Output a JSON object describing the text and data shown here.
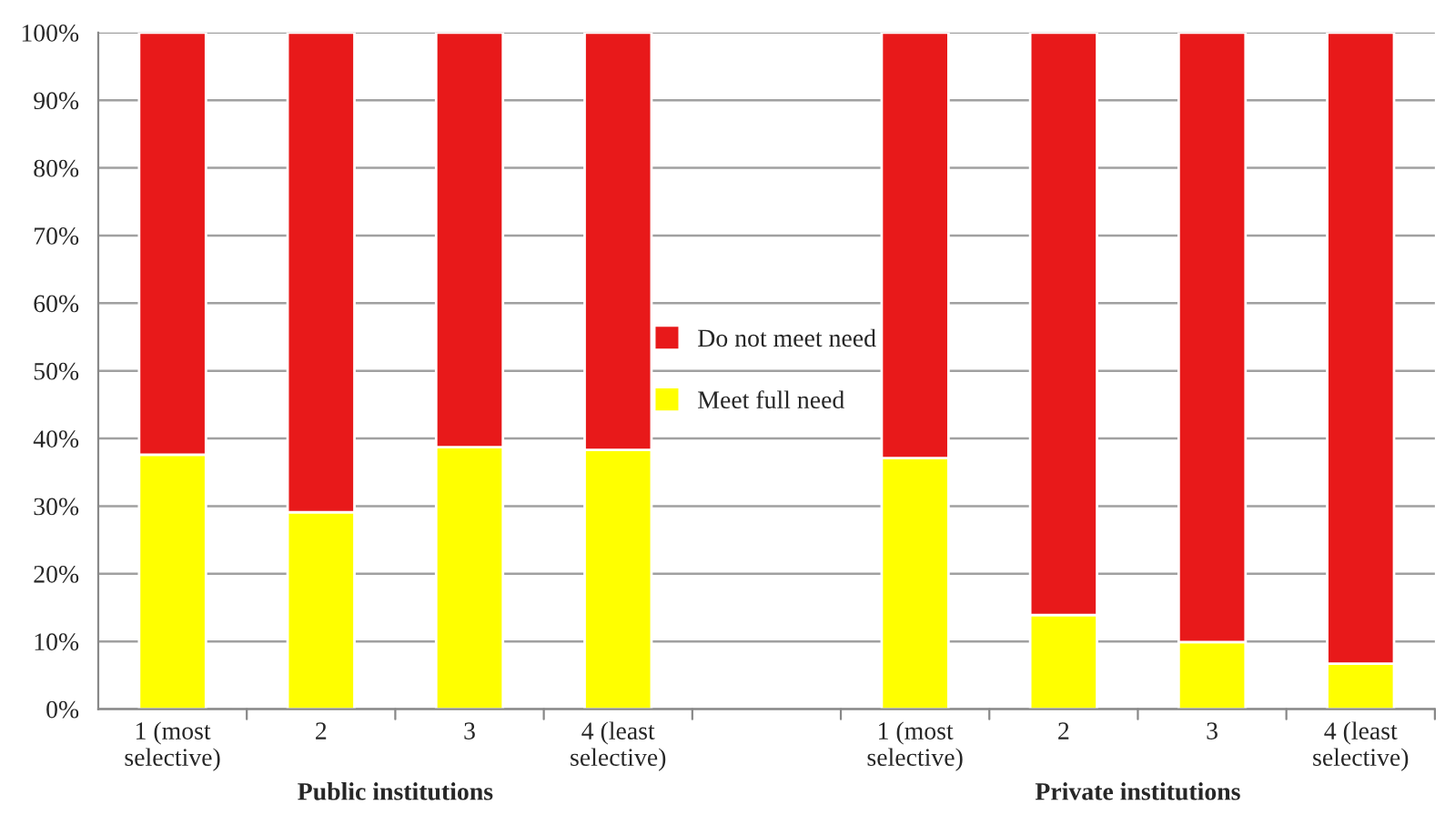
{
  "chart_data": {
    "type": "bar",
    "stacked": true,
    "categories": [
      "1 (most selective)",
      "2",
      "3",
      "4 (least selective)",
      null,
      "1 (most selective)",
      "2",
      "3",
      "4 (least selective)"
    ],
    "series": [
      {
        "name": "Meet full need",
        "color": "#ffff00",
        "values": [
          37.6,
          29.1,
          38.7,
          38.3,
          null,
          37.1,
          13.9,
          9.9,
          6.7
        ]
      },
      {
        "name": "Do not meet need",
        "color": "#e8191a",
        "values": [
          62.4,
          70.9,
          61.3,
          61.7,
          null,
          62.9,
          86.1,
          90.1,
          93.3
        ]
      }
    ],
    "ylim": [
      0,
      100
    ],
    "yticks": [
      {
        "value": 0,
        "label": "0%"
      },
      {
        "value": 10,
        "label": "10%"
      },
      {
        "value": 20,
        "label": "20%"
      },
      {
        "value": 30,
        "label": "30%"
      },
      {
        "value": 40,
        "label": "40%"
      },
      {
        "value": 50,
        "label": "50%"
      },
      {
        "value": 60,
        "label": "60%"
      },
      {
        "value": 70,
        "label": "70%"
      },
      {
        "value": 80,
        "label": "80%"
      },
      {
        "value": 90,
        "label": "90%"
      },
      {
        "value": 100,
        "label": "100%"
      }
    ],
    "grid": "y",
    "legend": "center",
    "annotations": [
      "Public institutions",
      "Private institutions"
    ]
  }
}
